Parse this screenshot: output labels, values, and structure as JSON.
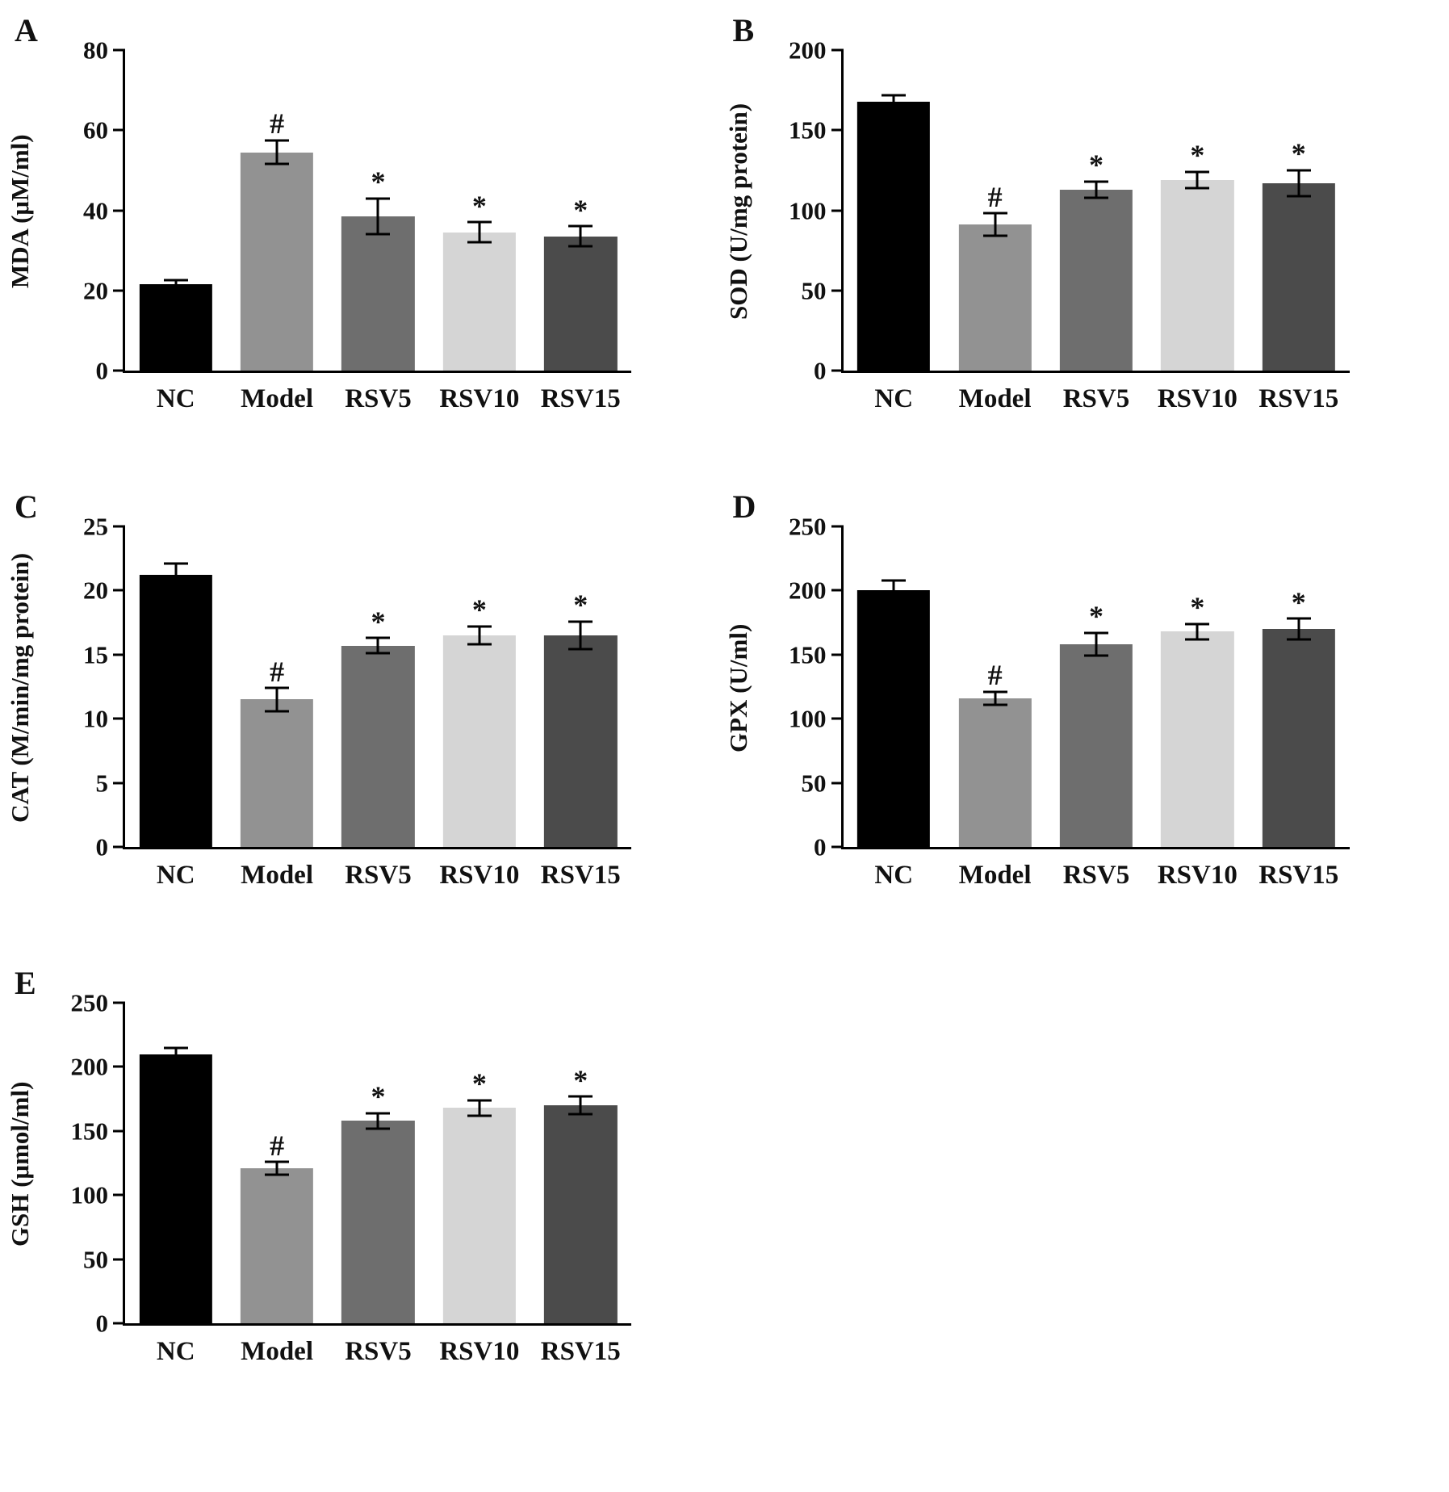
{
  "figure": {
    "background": "#ffffff",
    "axis_color": "#000000",
    "error_bar_color": "#000000",
    "panels_order": [
      "A",
      "B",
      "C",
      "D",
      "E"
    ],
    "group_colors": {
      "NC": "#000000",
      "Model": "#929292",
      "RSV5": "#6e6e6e",
      "RSV10": "#d5d5d5",
      "RSV15": "#4b4b4b"
    }
  },
  "chart_data": [
    {
      "type": "bar",
      "panel": "A",
      "title": "",
      "xlabel": "",
      "ylabel": "MDA (μM/ml)",
      "categories": [
        "NC",
        "Model",
        "RSV5",
        "RSV10",
        "RSV15"
      ],
      "values": [
        21.5,
        54.5,
        38.5,
        34.5,
        33.5
      ],
      "errors": [
        1,
        3,
        4.5,
        2.5,
        2.5
      ],
      "annotations": [
        "",
        "#",
        "*",
        "*",
        "*"
      ],
      "ylim": [
        0,
        80
      ],
      "yticks": [
        0,
        20,
        40,
        60,
        80
      ],
      "bar_colors": [
        "#000000",
        "#929292",
        "#6e6e6e",
        "#d5d5d5",
        "#4b4b4b"
      ],
      "grid": false,
      "legend": "none"
    },
    {
      "type": "bar",
      "panel": "B",
      "title": "",
      "xlabel": "",
      "ylabel": "SOD (U/mg protein)",
      "categories": [
        "NC",
        "Model",
        "RSV5",
        "RSV10",
        "RSV15"
      ],
      "values": [
        168,
        91,
        113,
        119,
        117
      ],
      "errors": [
        4,
        7,
        5,
        5,
        8
      ],
      "annotations": [
        "",
        "#",
        "*",
        "*",
        "*"
      ],
      "ylim": [
        0,
        200
      ],
      "yticks": [
        0,
        50,
        100,
        150,
        200
      ],
      "bar_colors": [
        "#000000",
        "#929292",
        "#6e6e6e",
        "#d5d5d5",
        "#4b4b4b"
      ],
      "grid": false,
      "legend": "none"
    },
    {
      "type": "bar",
      "panel": "C",
      "title": "",
      "xlabel": "",
      "ylabel": "CAT (M/min/mg protein)",
      "categories": [
        "NC",
        "Model",
        "RSV5",
        "RSV10",
        "RSV15"
      ],
      "values": [
        21.2,
        11.5,
        15.7,
        16.5,
        16.5
      ],
      "errors": [
        0.9,
        0.9,
        0.6,
        0.7,
        1.1
      ],
      "annotations": [
        "",
        "#",
        "*",
        "*",
        "*"
      ],
      "ylim": [
        0,
        25
      ],
      "yticks": [
        0,
        5,
        10,
        15,
        20,
        25
      ],
      "bar_colors": [
        "#000000",
        "#929292",
        "#6e6e6e",
        "#d5d5d5",
        "#4b4b4b"
      ],
      "grid": false,
      "legend": "none"
    },
    {
      "type": "bar",
      "panel": "D",
      "title": "",
      "xlabel": "",
      "ylabel": "GPX (U/ml)",
      "categories": [
        "NC",
        "Model",
        "RSV5",
        "RSV10",
        "RSV15"
      ],
      "values": [
        200,
        116,
        158,
        168,
        170
      ],
      "errors": [
        8,
        5,
        9,
        6,
        8
      ],
      "annotations": [
        "",
        "#",
        "*",
        "*",
        "*"
      ],
      "ylim": [
        0,
        250
      ],
      "yticks": [
        0,
        50,
        100,
        150,
        200,
        250
      ],
      "bar_colors": [
        "#000000",
        "#929292",
        "#6e6e6e",
        "#d5d5d5",
        "#4b4b4b"
      ],
      "grid": false,
      "legend": "none"
    },
    {
      "type": "bar",
      "panel": "E",
      "title": "",
      "xlabel": "",
      "ylabel": "GSH (μmol/ml)",
      "categories": [
        "NC",
        "Model",
        "RSV5",
        "RSV10",
        "RSV15"
      ],
      "values": [
        210,
        121,
        158,
        168,
        170
      ],
      "errors": [
        5,
        5,
        6,
        6,
        7
      ],
      "annotations": [
        "",
        "#",
        "*",
        "*",
        "*"
      ],
      "ylim": [
        0,
        250
      ],
      "yticks": [
        0,
        50,
        100,
        150,
        200,
        250
      ],
      "bar_colors": [
        "#000000",
        "#929292",
        "#6e6e6e",
        "#d5d5d5",
        "#4b4b4b"
      ],
      "grid": false,
      "legend": "none"
    }
  ]
}
